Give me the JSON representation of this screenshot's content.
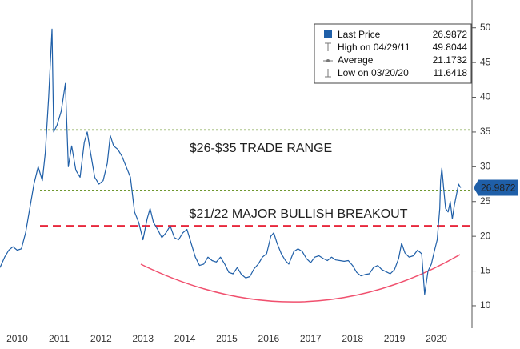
{
  "chart_data": {
    "type": "line",
    "x": [
      2010.09,
      2010.2,
      2010.3,
      2010.4,
      2010.5,
      2010.6,
      2010.7,
      2010.8,
      2010.9,
      2011.0,
      2011.1,
      2011.17,
      2011.25,
      2011.33,
      2011.37,
      2011.45,
      2011.55,
      2011.65,
      2011.72,
      2011.8,
      2011.9,
      2012.0,
      2012.1,
      2012.17,
      2012.25,
      2012.35,
      2012.45,
      2012.55,
      2012.65,
      2012.72,
      2012.8,
      2012.9,
      2013.0,
      2013.1,
      2013.2,
      2013.3,
      2013.4,
      2013.5,
      2013.6,
      2013.67,
      2013.75,
      2013.85,
      2013.95,
      2014.05,
      2014.15,
      2014.25,
      2014.35,
      2014.45,
      2014.55,
      2014.65,
      2014.75,
      2014.85,
      2014.95,
      2015.05,
      2015.15,
      2015.25,
      2015.35,
      2015.45,
      2015.55,
      2015.65,
      2015.75,
      2015.85,
      2015.95,
      2016.05,
      2016.15,
      2016.25,
      2016.35,
      2016.45,
      2016.55,
      2016.62,
      2016.7,
      2016.8,
      2016.9,
      2016.98,
      2017.1,
      2017.2,
      2017.3,
      2017.4,
      2017.5,
      2017.6,
      2017.7,
      2017.8,
      2017.9,
      2018.0,
      2018.1,
      2018.2,
      2018.3,
      2018.4,
      2018.5,
      2018.6,
      2018.7,
      2018.8,
      2018.9,
      2019.0,
      2019.1,
      2019.2,
      2019.3,
      2019.4,
      2019.5,
      2019.6,
      2019.67,
      2019.75,
      2019.85,
      2019.95,
      2020.05,
      2020.15,
      2020.22,
      2020.3,
      2020.38,
      2020.45,
      2020.52,
      2020.58,
      2020.6,
      2020.63,
      2020.68,
      2020.72,
      2020.78,
      2020.83,
      2020.88,
      2020.93,
      2020.98,
      2021.03,
      2021.08
    ],
    "series": [
      {
        "name": "Last Price",
        "color": "#1f5fa8",
        "values": [
          15.5,
          17.0,
          18.0,
          18.5,
          18.0,
          18.2,
          20.5,
          24.0,
          27.5,
          30.0,
          28.0,
          32.0,
          40.0,
          49.8044,
          35.0,
          36.0,
          38.0,
          42.0,
          30.0,
          33.0,
          29.5,
          28.5,
          33.5,
          35.0,
          32.0,
          28.5,
          27.5,
          28.0,
          30.5,
          34.5,
          33.0,
          32.5,
          31.5,
          30.0,
          28.5,
          23.5,
          22.0,
          19.5,
          22.5,
          24.0,
          22.0,
          21.0,
          19.8,
          20.5,
          21.5,
          19.8,
          19.5,
          20.5,
          21.0,
          19.0,
          17.0,
          15.8,
          16.0,
          17.0,
          16.5,
          16.3,
          17.0,
          16.0,
          14.8,
          14.6,
          15.5,
          14.5,
          14.0,
          14.2,
          15.3,
          16.0,
          17.0,
          17.5,
          20.0,
          20.5,
          19.0,
          17.5,
          16.5,
          16.0,
          17.8,
          18.2,
          17.8,
          16.8,
          16.2,
          17.0,
          17.2,
          16.8,
          16.5,
          17.0,
          16.6,
          16.5,
          16.4,
          16.5,
          15.8,
          14.8,
          14.3,
          14.5,
          14.6,
          15.5,
          15.8,
          15.2,
          14.9,
          14.6,
          15.2,
          16.8,
          19.0,
          17.6,
          17.0,
          17.2,
          18.0,
          17.5,
          11.6418,
          15.0,
          16.0,
          17.8,
          19.5,
          24.0,
          28.0,
          29.8,
          26.5,
          24.0,
          23.5,
          25.0,
          22.5,
          24.5,
          26.0,
          27.5,
          26.9872
        ]
      }
    ],
    "last_price": 26.9872,
    "legend_stats": [
      {
        "label": "High on 04/29/11",
        "value": 49.8044
      },
      {
        "label": "Average",
        "value": 21.1732
      },
      {
        "label": "Low on 03/20/20",
        "value": 11.6418
      }
    ],
    "xlim": [
      2010.09,
      2021.35
    ],
    "xticks": [
      {
        "value": 2010.5,
        "label": "2010"
      },
      {
        "value": 2011.5,
        "label": "2011"
      },
      {
        "value": 2012.5,
        "label": "2012"
      },
      {
        "value": 2013.5,
        "label": "2013"
      },
      {
        "value": 2014.5,
        "label": "2014"
      },
      {
        "value": 2015.5,
        "label": "2015"
      },
      {
        "value": 2016.5,
        "label": "2016"
      },
      {
        "value": 2017.5,
        "label": "2017"
      },
      {
        "value": 2018.5,
        "label": "2018"
      },
      {
        "value": 2019.5,
        "label": "2019"
      },
      {
        "value": 2020.5,
        "label": "2020"
      }
    ],
    "ylim": [
      7,
      54
    ],
    "yticks": [
      10,
      15,
      20,
      25,
      30,
      35,
      40,
      45,
      50
    ],
    "reference_lines": [
      {
        "value": 35.3,
        "color": "#5b8a12",
        "style": "dotted"
      },
      {
        "value": 26.6,
        "color": "#5b8a12",
        "style": "dotted"
      },
      {
        "value": 21.5,
        "color": "#e8283c",
        "style": "dashed"
      }
    ],
    "annotations": [
      {
        "text": "$26-$35 TRADE RANGE",
        "color": "#5b8a12"
      },
      {
        "text": "$21/22 MAJOR BULLISH BREAKOUT",
        "color": "#e8283c"
      }
    ]
  }
}
